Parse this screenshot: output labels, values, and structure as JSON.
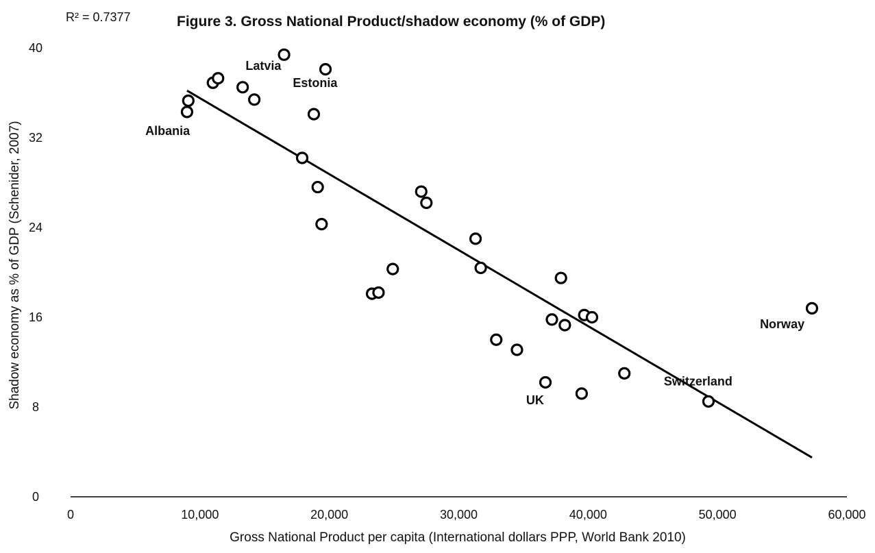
{
  "chart_data": {
    "type": "scatter",
    "title": "Figure 3. Gross National Product/shadow economy (% of GDP)",
    "r_squared_label": "R² = 0.7377",
    "xlabel": "Gross National Product per capita (International dollars PPP, World Bank 2010)",
    "ylabel": "Shadow economy as % of GDP (Schenider, 2007)",
    "xlim": [
      0,
      60000
    ],
    "ylim": [
      0,
      40
    ],
    "xticks": [
      0,
      10000,
      20000,
      30000,
      40000,
      50000,
      60000
    ],
    "xtick_labels": [
      "0",
      "10,000",
      "20,000",
      "30,000",
      "40,000",
      "50,000",
      "60,000"
    ],
    "yticks": [
      0,
      8,
      16,
      24,
      32,
      40
    ],
    "ytick_labels": [
      "0",
      "8",
      "16",
      "24",
      "32",
      "40"
    ],
    "grid": false,
    "points": [
      {
        "x": 9100,
        "y": 35.3
      },
      {
        "x": 9000,
        "y": 34.3
      },
      {
        "x": 11000,
        "y": 36.9
      },
      {
        "x": 11400,
        "y": 37.3
      },
      {
        "x": 13300,
        "y": 36.5
      },
      {
        "x": 14200,
        "y": 35.4
      },
      {
        "x": 16500,
        "y": 39.4
      },
      {
        "x": 19700,
        "y": 38.1
      },
      {
        "x": 18800,
        "y": 34.1
      },
      {
        "x": 17900,
        "y": 30.2
      },
      {
        "x": 19100,
        "y": 27.6
      },
      {
        "x": 19400,
        "y": 24.3
      },
      {
        "x": 27100,
        "y": 27.2
      },
      {
        "x": 27500,
        "y": 26.2
      },
      {
        "x": 24900,
        "y": 20.3
      },
      {
        "x": 23300,
        "y": 18.1
      },
      {
        "x": 23800,
        "y": 18.2
      },
      {
        "x": 31300,
        "y": 23.0
      },
      {
        "x": 31700,
        "y": 20.4
      },
      {
        "x": 37900,
        "y": 19.5
      },
      {
        "x": 37200,
        "y": 15.8
      },
      {
        "x": 38200,
        "y": 15.3
      },
      {
        "x": 39700,
        "y": 16.2
      },
      {
        "x": 40300,
        "y": 16.0
      },
      {
        "x": 32900,
        "y": 14.0
      },
      {
        "x": 34500,
        "y": 13.1
      },
      {
        "x": 36700,
        "y": 10.2
      },
      {
        "x": 39500,
        "y": 9.2
      },
      {
        "x": 42800,
        "y": 11.0
      },
      {
        "x": 49300,
        "y": 8.5
      },
      {
        "x": 57300,
        "y": 16.8
      }
    ],
    "trendline": {
      "x": [
        9000,
        57300
      ],
      "y": [
        36.2,
        3.5
      ]
    },
    "annotations": [
      {
        "text": "Latvia",
        "x": 14900,
        "y": 38.4
      },
      {
        "text": "Estonia",
        "x": 18900,
        "y": 36.9
      },
      {
        "text": "Albania",
        "x": 7500,
        "y": 32.6
      },
      {
        "text": "Norway",
        "x": 55000,
        "y": 15.4
      },
      {
        "text": "Switzerland",
        "x": 48500,
        "y": 10.3
      },
      {
        "text": "UK",
        "x": 35900,
        "y": 8.6
      }
    ],
    "colors": {
      "marker_stroke": "#000000",
      "marker_fill": "#ffffff",
      "line": "#000000",
      "text": "#111111"
    }
  }
}
